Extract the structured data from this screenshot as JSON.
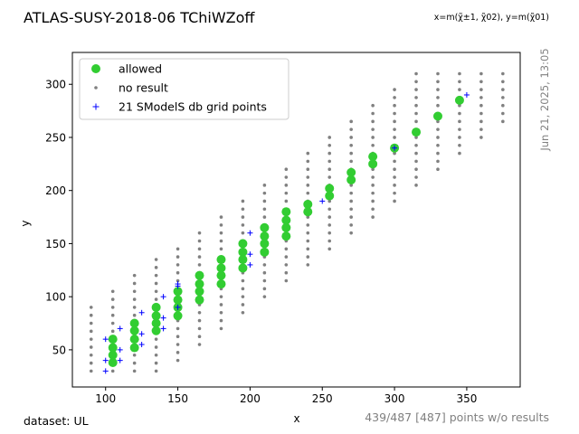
{
  "header": {
    "title": "ATLAS-SUSY-2018-06 TChiWZoff",
    "axes_note": "x=m(χ̃±1, χ̃02), y=m(χ̃01)",
    "timestamp": "Jun 21, 2025, 13:05"
  },
  "footer": {
    "dataset": "dataset: UL",
    "points_summary": "439/487 [487] points w/o results"
  },
  "colors": {
    "allowed": "#32cd32",
    "no_result": "#808080",
    "grid_point": "#0000ff",
    "muted_text": "#808080"
  },
  "chart_data": {
    "type": "scatter",
    "xlabel": "x",
    "ylabel": "y",
    "xlim": [
      77,
      387
    ],
    "ylim": [
      15,
      330
    ],
    "xticks": [
      100,
      150,
      200,
      250,
      300,
      350
    ],
    "yticks": [
      50,
      100,
      150,
      200,
      250,
      300
    ],
    "grid": false,
    "legend_position": "top-left",
    "series": [
      {
        "name": "allowed",
        "marker": "circle",
        "points": [
          [
            105,
            38
          ],
          [
            105,
            45
          ],
          [
            105,
            52
          ],
          [
            105,
            60
          ],
          [
            120,
            52
          ],
          [
            120,
            60
          ],
          [
            120,
            68
          ],
          [
            120,
            75
          ],
          [
            135,
            68
          ],
          [
            135,
            75
          ],
          [
            135,
            82
          ],
          [
            135,
            90
          ],
          [
            150,
            82
          ],
          [
            150,
            90
          ],
          [
            150,
            97
          ],
          [
            150,
            105
          ],
          [
            165,
            97
          ],
          [
            165,
            105
          ],
          [
            165,
            112
          ],
          [
            165,
            120
          ],
          [
            180,
            112
          ],
          [
            180,
            120
          ],
          [
            180,
            127
          ],
          [
            180,
            135
          ],
          [
            195,
            127
          ],
          [
            195,
            135
          ],
          [
            195,
            142
          ],
          [
            195,
            150
          ],
          [
            210,
            142
          ],
          [
            210,
            150
          ],
          [
            210,
            157
          ],
          [
            210,
            165
          ],
          [
            225,
            157
          ],
          [
            225,
            165
          ],
          [
            225,
            172
          ],
          [
            225,
            180
          ],
          [
            240,
            180
          ],
          [
            240,
            187
          ],
          [
            255,
            195
          ],
          [
            255,
            202
          ],
          [
            270,
            210
          ],
          [
            270,
            217
          ],
          [
            285,
            225
          ],
          [
            285,
            232
          ],
          [
            300,
            240
          ],
          [
            315,
            255
          ],
          [
            330,
            270
          ],
          [
            345,
            285
          ]
        ]
      },
      {
        "name": "no result",
        "marker": "dot",
        "columns": [
          {
            "x": 90,
            "ymin": 30,
            "ymax": 90,
            "step": 7.5
          },
          {
            "x": 105,
            "ymin": 30,
            "ymax": 105,
            "step": 7.5
          },
          {
            "x": 120,
            "ymin": 30,
            "ymax": 120,
            "step": 7.5
          },
          {
            "x": 135,
            "ymin": 30,
            "ymax": 135,
            "step": 7.5
          },
          {
            "x": 150,
            "ymin": 40,
            "ymax": 150,
            "step": 7.5
          },
          {
            "x": 165,
            "ymin": 55,
            "ymax": 165,
            "step": 7.5
          },
          {
            "x": 180,
            "ymin": 70,
            "ymax": 180,
            "step": 7.5
          },
          {
            "x": 195,
            "ymin": 85,
            "ymax": 195,
            "step": 7.5
          },
          {
            "x": 210,
            "ymin": 100,
            "ymax": 210,
            "step": 7.5
          },
          {
            "x": 225,
            "ymin": 115,
            "ymax": 225,
            "step": 7.5
          },
          {
            "x": 240,
            "ymin": 130,
            "ymax": 240,
            "step": 7.5
          },
          {
            "x": 255,
            "ymin": 145,
            "ymax": 255,
            "step": 7.5
          },
          {
            "x": 270,
            "ymin": 160,
            "ymax": 270,
            "step": 7.5
          },
          {
            "x": 285,
            "ymin": 175,
            "ymax": 285,
            "step": 7.5
          },
          {
            "x": 300,
            "ymin": 190,
            "ymax": 300,
            "step": 7.5
          },
          {
            "x": 315,
            "ymin": 205,
            "ymax": 315,
            "step": 7.5
          },
          {
            "x": 330,
            "ymin": 220,
            "ymax": 315,
            "step": 7.5
          },
          {
            "x": 345,
            "ymin": 235,
            "ymax": 315,
            "step": 7.5
          },
          {
            "x": 360,
            "ymin": 250,
            "ymax": 315,
            "step": 7.5
          },
          {
            "x": 375,
            "ymin": 265,
            "ymax": 315,
            "step": 7.5
          }
        ]
      },
      {
        "name": "21 SModelS db grid points",
        "marker": "plus",
        "points": [
          [
            100,
            30
          ],
          [
            100,
            40
          ],
          [
            100,
            60
          ],
          [
            110,
            40
          ],
          [
            110,
            50
          ],
          [
            110,
            70
          ],
          [
            125,
            55
          ],
          [
            125,
            65
          ],
          [
            125,
            85
          ],
          [
            140,
            70
          ],
          [
            140,
            80
          ],
          [
            140,
            100
          ],
          [
            150,
            90
          ],
          [
            150,
            110
          ],
          [
            200,
            130
          ],
          [
            200,
            140
          ],
          [
            200,
            160
          ],
          [
            250,
            190
          ],
          [
            300,
            240
          ],
          [
            350,
            290
          ],
          [
            150,
            112
          ]
        ]
      }
    ]
  }
}
